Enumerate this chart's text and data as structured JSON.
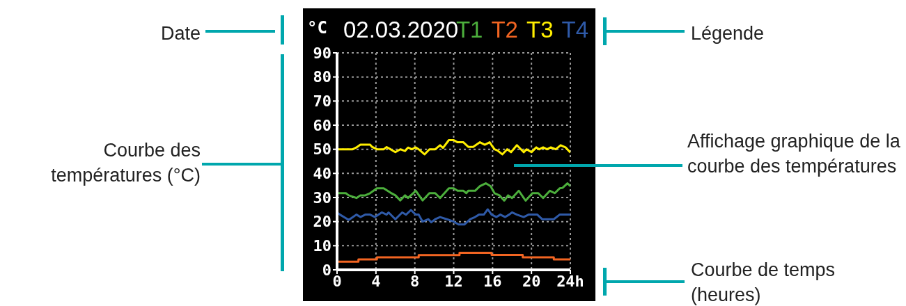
{
  "chart_data": {
    "type": "line",
    "title": "02.03.2020",
    "ylabel": "°C",
    "xlim": [
      0,
      24
    ],
    "xticks": [
      0,
      4,
      8,
      12,
      16,
      20,
      {
        "value": 24,
        "label": "24h"
      }
    ],
    "ylim": [
      0,
      90
    ],
    "yticks": [
      0,
      10,
      20,
      30,
      40,
      50,
      60,
      70,
      80,
      90
    ],
    "grid": true,
    "legend": "top right",
    "marker": "none",
    "series": [
      {
        "name": "T1",
        "color": "#4caf3c",
        "x": [
          0,
          0.9,
          1.2,
          2.0,
          2.4,
          2.9,
          3.4,
          4.1,
          4.8,
          5.5,
          6.0,
          6.5,
          7.0,
          7.3,
          8.1,
          8.8,
          9.5,
          10.1,
          10.6,
          11.5,
          12.0,
          12.4,
          13.0,
          13.3,
          13.5,
          14.2,
          14.7,
          15.3,
          15.8,
          16.2,
          16.7,
          17.2,
          17.6,
          18.0,
          18.7,
          19.4,
          20.1,
          20.7,
          21.2,
          21.9,
          22.4,
          22.9,
          23.2,
          23.7,
          24
        ],
        "values": [
          31.8,
          31.8,
          30.9,
          29.8,
          30.9,
          30.9,
          31.8,
          33.8,
          33.8,
          32,
          30.9,
          28.8,
          30.9,
          29.8,
          32.8,
          28.8,
          31.8,
          31.8,
          29.8,
          33.8,
          33.8,
          32.8,
          32.8,
          31.8,
          32.8,
          32.8,
          34.7,
          35.9,
          34.7,
          31.8,
          30.9,
          28.7,
          30.9,
          29.8,
          32.8,
          28.7,
          31.8,
          31.8,
          29.8,
          32.8,
          31.8,
          33.8,
          34,
          35.9,
          34.7
        ]
      },
      {
        "name": "T2",
        "color": "#f26522",
        "type": "step",
        "x": [
          0,
          2.2,
          4.1,
          8.4,
          12.6,
          15.9,
          19.1,
          22.3,
          24
        ],
        "values": [
          3.4,
          4.3,
          5.2,
          6.1,
          7.1,
          6.2,
          5.2,
          4.3,
          4.3
        ]
      },
      {
        "name": "T3",
        "color": "#ffee00",
        "x": [
          0,
          1.6,
          2.0,
          2.4,
          3.4,
          3.6,
          4.1,
          4.8,
          5.1,
          5.5,
          6.0,
          6.5,
          7.0,
          7.3,
          7.7,
          8.1,
          8.4,
          9.0,
          9.5,
          10.1,
          10.6,
          10.9,
          11.5,
          12.0,
          12.4,
          13.0,
          13.5,
          14.0,
          14.7,
          15.2,
          15.7,
          15.9,
          16.2,
          16.5,
          17.0,
          17.5,
          17.9,
          18.5,
          19.2,
          19.5,
          20.0,
          20.5,
          20.8,
          21.2,
          21.6,
          22.0,
          22.5,
          23.0,
          23.5,
          24
        ],
        "values": [
          50,
          50,
          50.8,
          51.9,
          51.9,
          51,
          50,
          50,
          50.9,
          50,
          48.8,
          50,
          49.3,
          50.7,
          50,
          50.8,
          50,
          47.9,
          50,
          50,
          51.7,
          50.6,
          53.8,
          53.8,
          52.9,
          52.9,
          51,
          51,
          52.9,
          51.9,
          52.9,
          51.7,
          50,
          49.5,
          47.9,
          50,
          48.8,
          51.7,
          48.8,
          50,
          48.8,
          50.8,
          50,
          50.8,
          50,
          50.8,
          50,
          51.7,
          50.8,
          48.7
        ]
      },
      {
        "name": "T4",
        "color": "#2f5aa8",
        "x": [
          0,
          0.3,
          1.2,
          2.0,
          2.4,
          2.9,
          3.4,
          3.9,
          4.6,
          5.1,
          5.3,
          6.0,
          6.7,
          7.1,
          7.6,
          8.1,
          8.4,
          8.8,
          9.4,
          9.7,
          10.1,
          10.6,
          11.3,
          12.0,
          12.5,
          13.1,
          13.7,
          14.2,
          14.6,
          15.1,
          15.5,
          15.9,
          16.4,
          16.8,
          17.3,
          17.7,
          18.0,
          18.5,
          19.2,
          19.7,
          20.6,
          21.1,
          22.3,
          22.9,
          24
        ],
        "values": [
          23.8,
          22.9,
          20.7,
          22.9,
          21.9,
          22.9,
          22.9,
          21.9,
          23.8,
          22.9,
          23.8,
          21,
          23.8,
          22.9,
          24.8,
          22.9,
          22.9,
          20,
          21,
          19.7,
          21,
          21.9,
          21,
          20,
          18.8,
          18.8,
          21,
          21.9,
          22.9,
          22.9,
          25.1,
          22.9,
          21.9,
          22.9,
          21.9,
          22.9,
          23.8,
          22.9,
          21.9,
          22.9,
          22.9,
          21,
          21,
          22.9,
          22.9
        ]
      }
    ],
    "annotations": [
      "Date",
      "Légende",
      "Courbe des températures (°C)",
      "Affichage graphique de la courbe des températures",
      "Courbe de temps (heures)"
    ]
  }
}
